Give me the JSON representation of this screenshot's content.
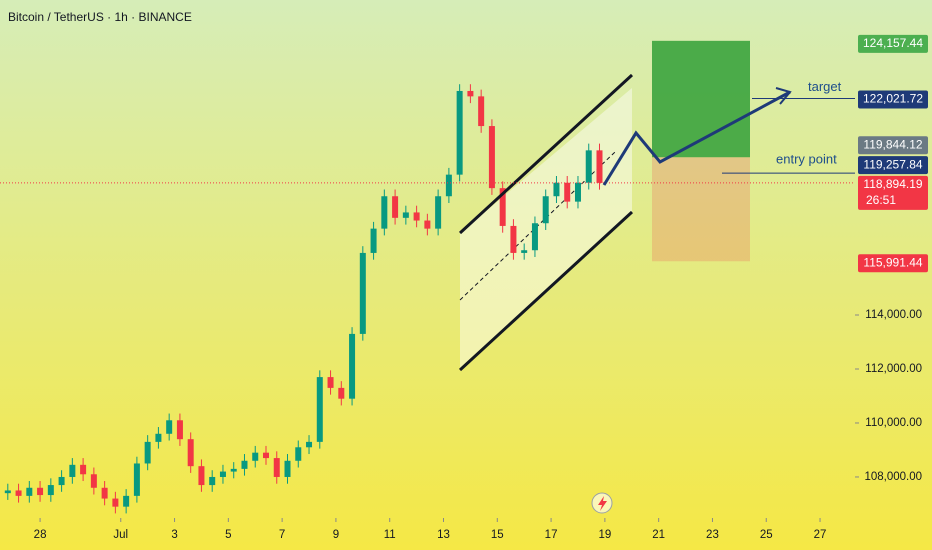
{
  "chart_data": {
    "type": "candlestick",
    "title": "Bitcoin / TetherUS · 1h · BINANCE",
    "x": [
      -1.2,
      -0.8,
      -0.4,
      0,
      0.4,
      0.8,
      1.2,
      1.6,
      2,
      2.4,
      2.8,
      3.2,
      3.6,
      4,
      4.4,
      4.8,
      5.2,
      5.6,
      6,
      6.4,
      6.8,
      7.2,
      7.6,
      8,
      8.4,
      8.8,
      9.2,
      9.6,
      10,
      10.4,
      10.8,
      11.2,
      11.6,
      12,
      12.4,
      12.8,
      13.2,
      13.6,
      14,
      14.4,
      14.8,
      15.2,
      15.6,
      16,
      16.4,
      16.8,
      17.2,
      17.6,
      18,
      18.4,
      18.8,
      19.2,
      19.6,
      20,
      20.4,
      20.8
    ],
    "open": [
      107400,
      107500,
      107300,
      107600,
      107330,
      107700,
      108000,
      108450,
      108100,
      107600,
      107200,
      106900,
      107300,
      108500,
      109300,
      109600,
      110100,
      109400,
      108400,
      107700,
      108000,
      108200,
      108300,
      108600,
      108900,
      108700,
      108000,
      108600,
      109100,
      109300,
      111700,
      111300,
      110900,
      113300,
      116300,
      117200,
      118400,
      117600,
      117800,
      117500,
      117200,
      118400,
      119200,
      122300,
      122100,
      121000,
      118700,
      117300,
      116300,
      116400,
      117400,
      118400,
      118900,
      118200,
      118900,
      120100
    ],
    "high": [
      107750,
      107750,
      107850,
      107850,
      107950,
      108250,
      108700,
      108700,
      108350,
      107850,
      107450,
      107550,
      108750,
      109550,
      109850,
      110350,
      110350,
      109650,
      108650,
      108250,
      108450,
      108550,
      108850,
      109150,
      109150,
      108950,
      108850,
      109350,
      109550,
      111950,
      111950,
      111550,
      113550,
      116550,
      117450,
      118650,
      118650,
      118050,
      118050,
      117750,
      118650,
      119450,
      122550,
      122550,
      122350,
      121250,
      118950,
      117550,
      116650,
      117650,
      118650,
      119150,
      119150,
      119150,
      120350,
      120350
    ],
    "low": [
      107150,
      107050,
      107050,
      107080,
      107080,
      107450,
      107750,
      107850,
      107350,
      106950,
      106650,
      106650,
      107050,
      108250,
      109050,
      109350,
      109150,
      108150,
      107450,
      107450,
      107750,
      107950,
      108050,
      108350,
      108450,
      107750,
      107750,
      108350,
      108850,
      109050,
      111050,
      110650,
      110650,
      113050,
      116050,
      116950,
      117350,
      117350,
      117250,
      116950,
      116950,
      118150,
      118950,
      121850,
      120750,
      118450,
      117050,
      116050,
      116050,
      116150,
      117150,
      118150,
      117950,
      117950,
      118650,
      118644.19
    ],
    "close": [
      107500,
      107300,
      107600,
      107330,
      107700,
      108000,
      108450,
      108100,
      107600,
      107200,
      106900,
      107300,
      108500,
      109300,
      109600,
      110100,
      109400,
      108400,
      107700,
      108000,
      108200,
      108300,
      108600,
      108900,
      108700,
      108000,
      108600,
      109100,
      109300,
      111700,
      111300,
      110900,
      113300,
      116300,
      117200,
      118400,
      117600,
      117800,
      117500,
      117200,
      118400,
      119200,
      122300,
      122100,
      121000,
      118700,
      117300,
      116300,
      116400,
      117400,
      118400,
      118900,
      118200,
      118900,
      120100,
      118894.19
    ],
    "up_color": "#089981",
    "down_color": "#f23645",
    "xlim": [
      -1.49,
      30.3
    ],
    "xticks": [
      {
        "value": 0,
        "label": "28"
      },
      {
        "value": 3,
        "label": "Jul"
      },
      {
        "value": 5,
        "label": "3"
      },
      {
        "value": 7,
        "label": "5"
      },
      {
        "value": 9,
        "label": "7"
      },
      {
        "value": 11,
        "label": "9"
      },
      {
        "value": 13,
        "label": "11"
      },
      {
        "value": 15,
        "label": "13"
      },
      {
        "value": 17,
        "label": "15"
      },
      {
        "value": 19,
        "label": "17"
      },
      {
        "value": 21,
        "label": "19"
      },
      {
        "value": 23,
        "label": "21"
      },
      {
        "value": 25,
        "label": "23"
      },
      {
        "value": 27,
        "label": "25"
      },
      {
        "value": 29,
        "label": "27"
      }
    ],
    "ylim": [
      106480,
      125670
    ],
    "yticks": [
      {
        "value": 108000,
        "label": "108,000.00"
      },
      {
        "value": 110000,
        "label": "110,000.00"
      },
      {
        "value": 112000,
        "label": "112,000.00"
      },
      {
        "value": 114000,
        "label": "114,000.00"
      }
    ],
    "price_labels": [
      {
        "value": 124157.44,
        "label": "124,157.44",
        "color": "#4caf50"
      },
      {
        "value": 122021.72,
        "label": "122,021.72",
        "color": "#1e3a78"
      },
      {
        "value": 119844.12,
        "label": "119,844.12",
        "color": "#6b7a84"
      },
      {
        "value": 119257.84,
        "label": "119,257.84",
        "color": "#1e3a78"
      },
      {
        "value": 118894.19,
        "label": "118,894.19",
        "color": "#f23645"
      },
      {
        "value": 115991.44,
        "label": "115,991.44",
        "color": "#f23645"
      }
    ],
    "countdown": "26:51",
    "annotations": [
      "target",
      "entry point"
    ]
  }
}
